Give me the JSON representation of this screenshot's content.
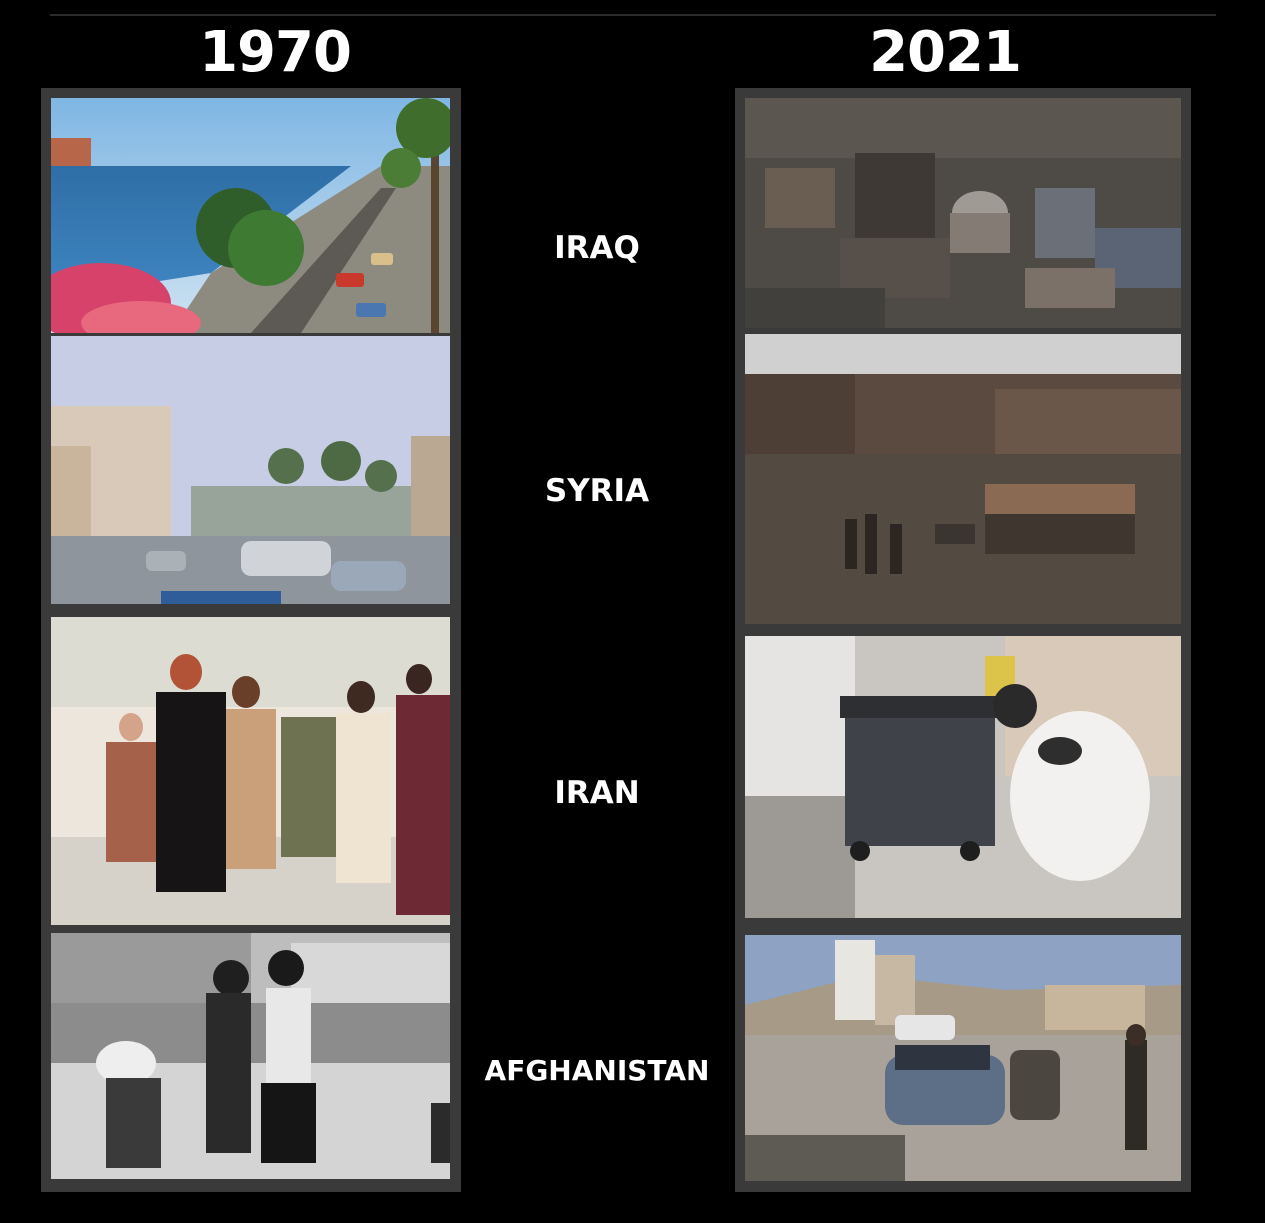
{
  "header": {
    "left_year": "1970",
    "right_year": "2021"
  },
  "countries": [
    {
      "name": "IRAQ"
    },
    {
      "name": "SYRIA"
    },
    {
      "name": "IRAN"
    },
    {
      "name": "AFGHANISTAN"
    }
  ],
  "colors": {
    "background": "#000000",
    "text": "#ffffff",
    "panel_border": "#3a3a3a"
  }
}
